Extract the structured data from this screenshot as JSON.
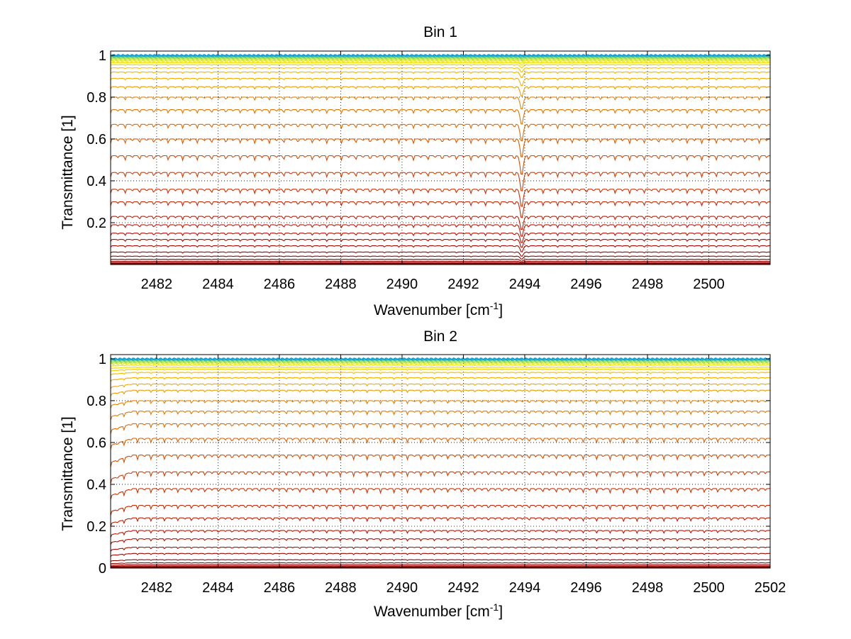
{
  "chart_data": [
    {
      "type": "line",
      "title": "Bin 1",
      "xlabel": "Wavenumber [cm",
      "xlabel_sup": "-1",
      "xlabel_end": "]",
      "ylabel": "Transmittance [1]",
      "xlim": [
        2480.5,
        2502
      ],
      "ylim": [
        0,
        1.02
      ],
      "xticks": [
        2482,
        2484,
        2486,
        2488,
        2490,
        2492,
        2494,
        2496,
        2498,
        2500
      ],
      "xtick_labels": [
        "2482",
        "2484",
        "2486",
        "2488",
        "2490",
        "2492",
        "2494",
        "2496",
        "2498",
        "2500"
      ],
      "yticks": [
        0.2,
        0.4,
        0.6,
        0.8,
        1
      ],
      "ytick_labels": [
        "0.2",
        "0.4",
        "0.6",
        "0.8",
        "1"
      ],
      "grid": true,
      "line_spacing": 0.47,
      "deep_line": {
        "x": 2493.9,
        "width": 0.07
      },
      "series_levels": [
        0.003,
        0.006,
        0.01,
        0.016,
        0.025,
        0.04,
        0.06,
        0.09,
        0.12,
        0.15,
        0.19,
        0.23,
        0.3,
        0.36,
        0.44,
        0.52,
        0.6,
        0.67,
        0.74,
        0.8,
        0.85,
        0.89,
        0.92,
        0.94,
        0.955,
        0.965,
        0.972,
        0.978,
        0.983,
        0.987,
        0.99,
        0.993,
        0.995,
        0.997,
        0.999,
        1.0
      ]
    },
    {
      "type": "line",
      "title": "Bin 2",
      "xlabel": "Wavenumber [cm",
      "xlabel_sup": "-1",
      "xlabel_end": "]",
      "ylabel": "Transmittance [1]",
      "xlim": [
        2480.5,
        2502
      ],
      "ylim": [
        0,
        1.02
      ],
      "xticks": [
        2482,
        2484,
        2486,
        2488,
        2490,
        2492,
        2494,
        2496,
        2498,
        2500,
        2502
      ],
      "xtick_labels": [
        "2482",
        "2484",
        "2486",
        "2488",
        "2490",
        "2492",
        "2494",
        "2496",
        "2498",
        "2500",
        "2502"
      ],
      "yticks": [
        0,
        0.2,
        0.4,
        0.6,
        0.8,
        1
      ],
      "ytick_labels": [
        "0",
        "0.2",
        "0.4",
        "0.6",
        "0.8",
        "1"
      ],
      "grid": true,
      "line_spacing": 0.44,
      "deep_line": null,
      "series_levels": [
        0.003,
        0.006,
        0.01,
        0.016,
        0.025,
        0.04,
        0.07,
        0.1,
        0.14,
        0.18,
        0.24,
        0.3,
        0.38,
        0.46,
        0.54,
        0.62,
        0.69,
        0.75,
        0.8,
        0.85,
        0.88,
        0.91,
        0.935,
        0.95,
        0.96,
        0.97,
        0.978,
        0.984,
        0.988,
        0.992,
        0.995,
        0.997,
        0.999,
        1.0
      ]
    }
  ]
}
